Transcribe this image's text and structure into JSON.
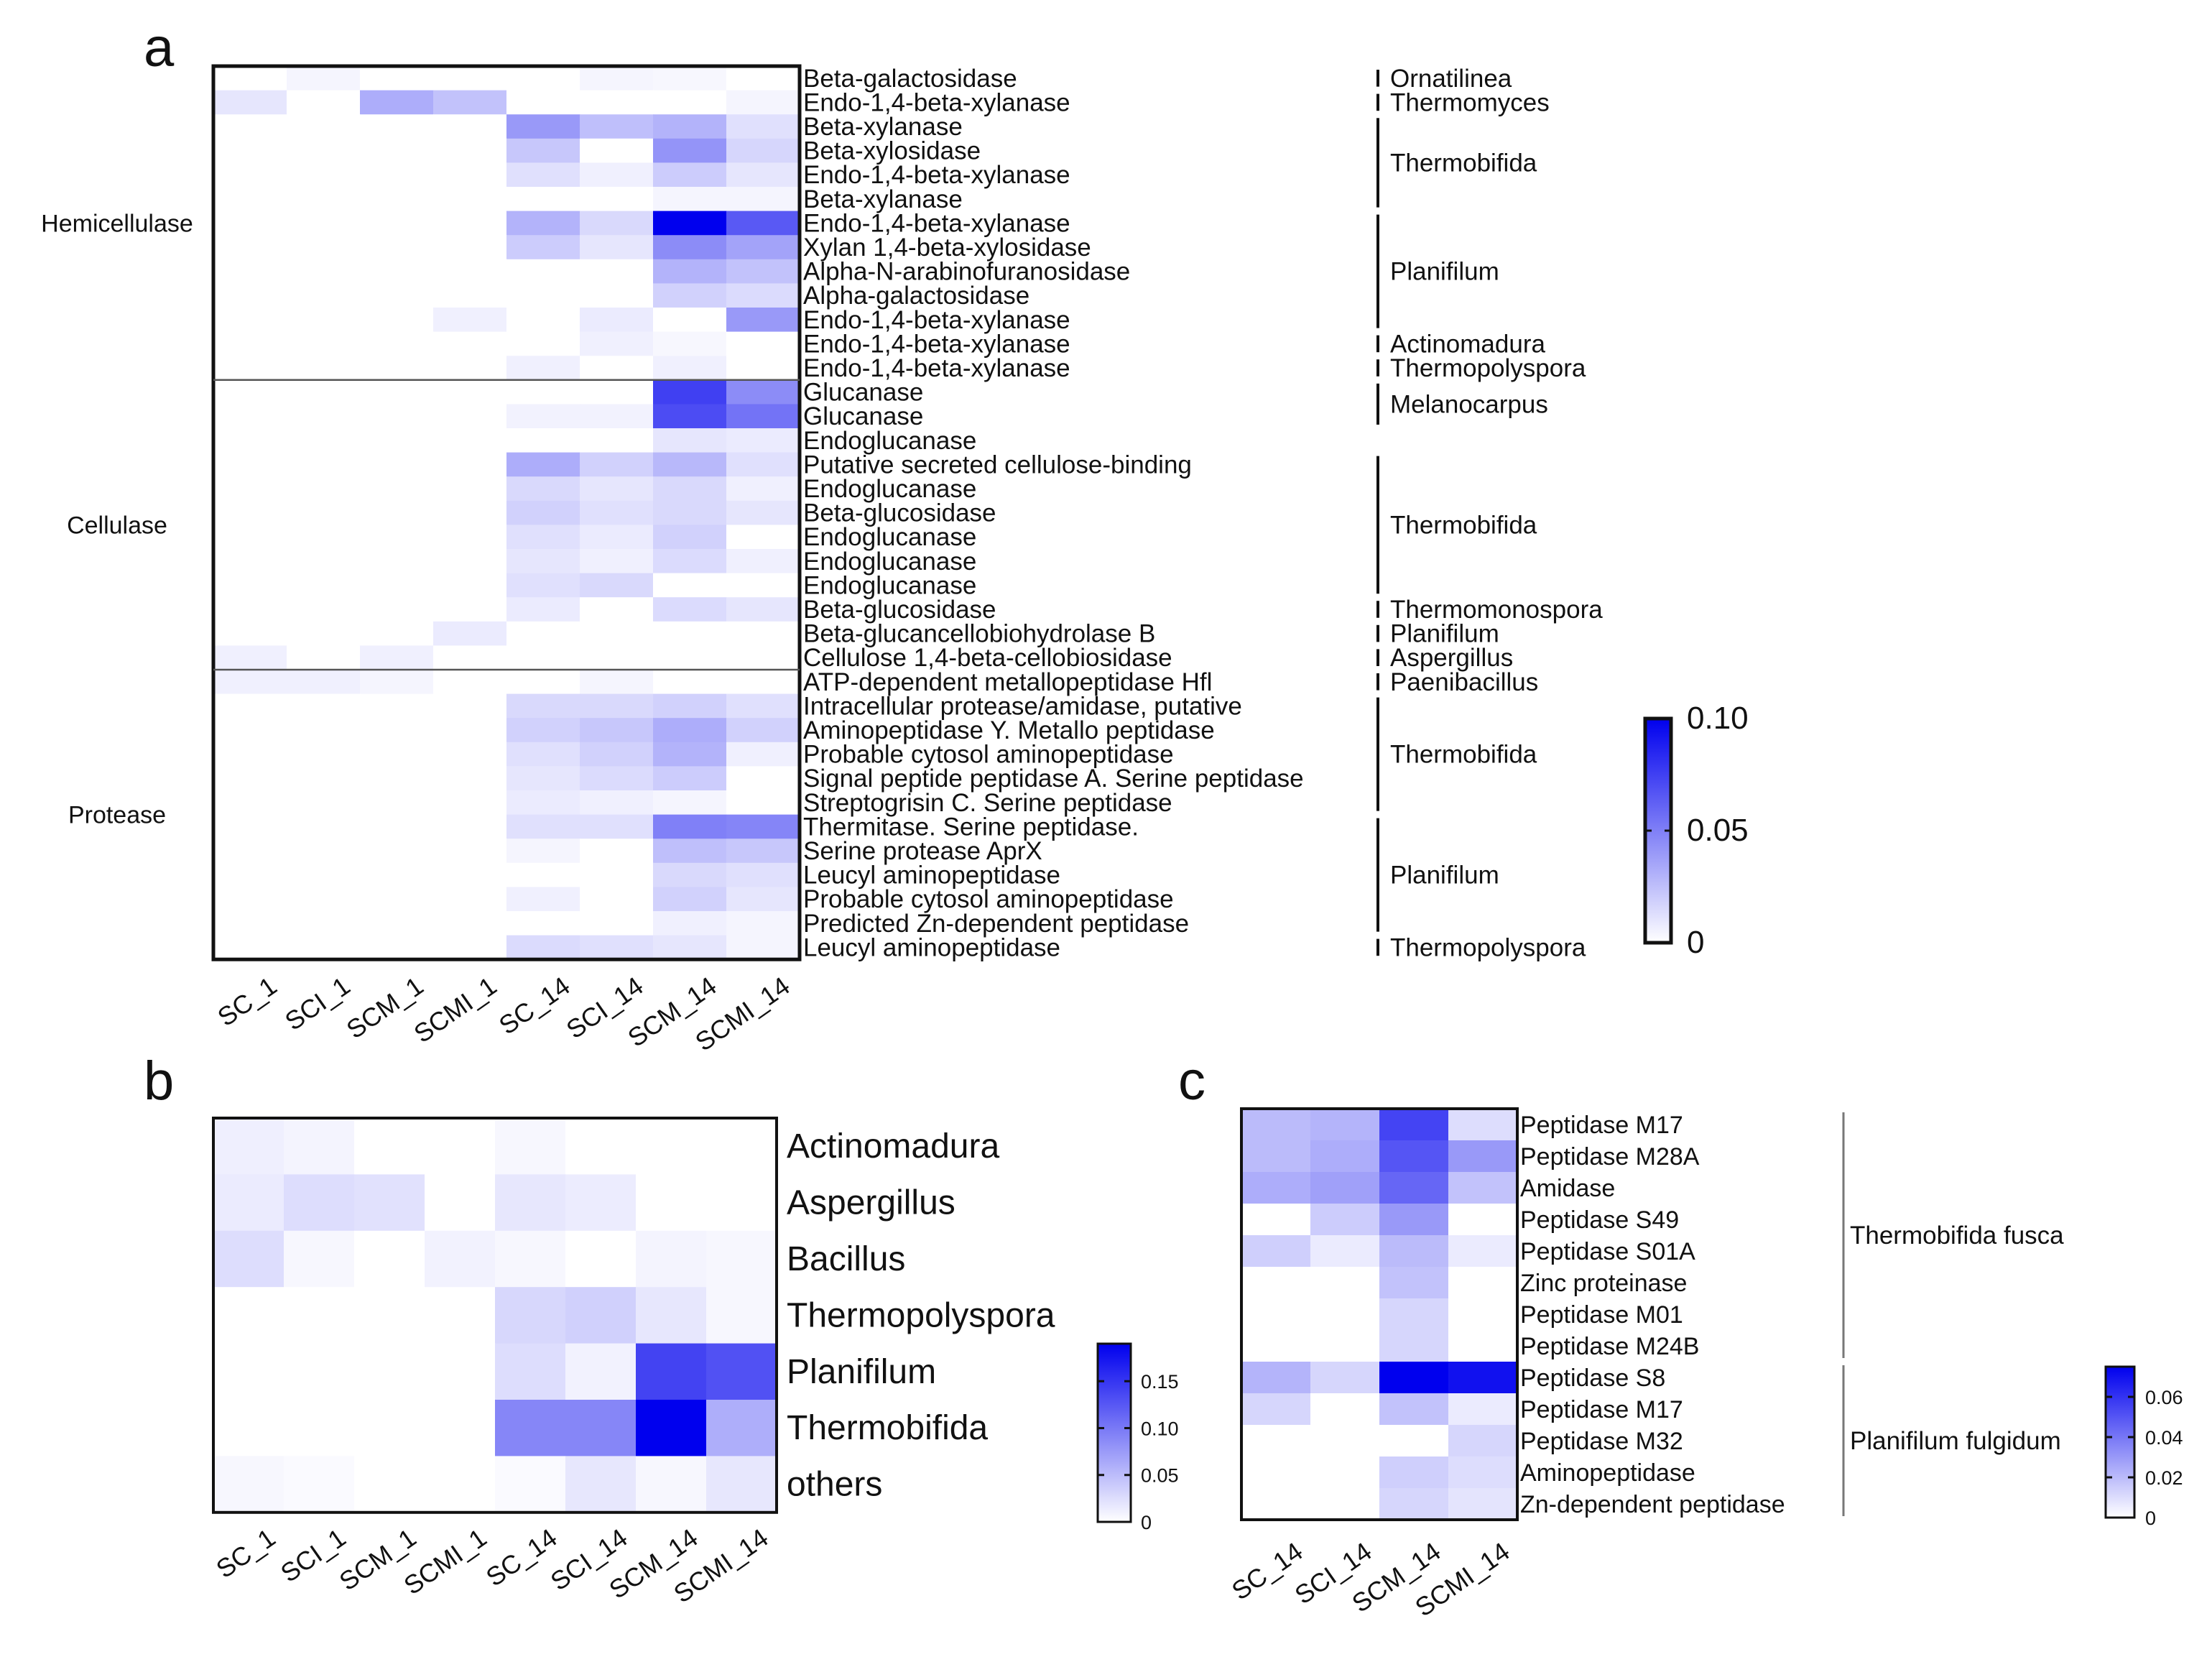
{
  "chart_data": [
    {
      "panel": "a",
      "type": "heatmap",
      "x": [
        "SC_1",
        "SCI_1",
        "SCM_1",
        "SCMI_1",
        "SC_14",
        "SCI_14",
        "SCM_14",
        "SCMI_14"
      ],
      "rows": [
        "Beta-galactosidase",
        "Endo-1,4-beta-xylanase",
        "Beta-xylanase",
        "Beta-xylosidase",
        "Endo-1,4-beta-xylanase",
        "Beta-xylanase",
        "Endo-1,4-beta-xylanase",
        "Xylan 1,4-beta-xylosidase",
        "Alpha-N-arabinofuranosidase",
        "Alpha-galactosidase",
        "Endo-1,4-beta-xylanase",
        "Endo-1,4-beta-xylanase",
        "Endo-1,4-beta-xylanase",
        "Glucanase",
        "Glucanase",
        "Endoglucanase",
        "Putative secreted cellulose-binding",
        "Endoglucanase",
        "Beta-glucosidase",
        "Endoglucanase",
        "Endoglucanase",
        "Endoglucanase",
        "Beta-glucosidase",
        "Beta-glucancellobiohydrolase B",
        "Cellulose 1,4-beta-cellobiosidase",
        "ATP-dependent metallopeptidase Hfl",
        "Intracellular protease/amidase, putative",
        "Aminopeptidase Y. Metallo peptidase",
        "Probable cytosol aminopeptidase",
        "Signal peptide peptidase A. Serine peptidase",
        "Streptogrisin C. Serine peptidase",
        "Thermitase. Serine peptidase.",
        "Serine protease AprX",
        "Leucyl aminopeptidase",
        "Probable cytosol aminopeptidase",
        "Predicted Zn-dependent peptidase",
        "Leucyl aminopeptidase"
      ],
      "values": [
        [
          0,
          0.004,
          0,
          0,
          0,
          0.004,
          0.003,
          0
        ],
        [
          0.01,
          0,
          0.032,
          0.024,
          0,
          0,
          0,
          0.004
        ],
        [
          0,
          0,
          0,
          0,
          0.04,
          0.025,
          0.03,
          0.012
        ],
        [
          0,
          0,
          0,
          0,
          0.022,
          0,
          0.042,
          0.016
        ],
        [
          0,
          0,
          0,
          0,
          0.012,
          0.006,
          0.02,
          0.01
        ],
        [
          0,
          0,
          0,
          0,
          0,
          0,
          0.004,
          0.004
        ],
        [
          0,
          0,
          0,
          0,
          0.03,
          0.015,
          0.1,
          0.065
        ],
        [
          0,
          0,
          0,
          0,
          0.02,
          0.01,
          0.045,
          0.036
        ],
        [
          0,
          0,
          0,
          0,
          0,
          0,
          0.03,
          0.024
        ],
        [
          0,
          0,
          0,
          0,
          0,
          0,
          0.018,
          0.014
        ],
        [
          0,
          0,
          0,
          0.006,
          0,
          0.008,
          0,
          0.04
        ],
        [
          0,
          0,
          0,
          0,
          0,
          0.006,
          0.003,
          0
        ],
        [
          0,
          0,
          0,
          0,
          0.006,
          0,
          0.006,
          0
        ],
        [
          0,
          0,
          0,
          0,
          0,
          0,
          0.075,
          0.045
        ],
        [
          0,
          0,
          0,
          0,
          0.005,
          0.005,
          0.07,
          0.055
        ],
        [
          0,
          0,
          0,
          0,
          0,
          0,
          0.01,
          0.008
        ],
        [
          0,
          0,
          0,
          0,
          0.032,
          0.018,
          0.028,
          0.012
        ],
        [
          0,
          0,
          0,
          0,
          0.015,
          0.01,
          0.015,
          0.006
        ],
        [
          0,
          0,
          0,
          0,
          0.018,
          0.012,
          0.015,
          0.01
        ],
        [
          0,
          0,
          0,
          0,
          0.012,
          0.008,
          0.018,
          0
        ],
        [
          0,
          0,
          0,
          0,
          0.01,
          0.006,
          0.014,
          0.006
        ],
        [
          0,
          0,
          0,
          0,
          0.012,
          0.015,
          0,
          0
        ],
        [
          0,
          0,
          0,
          0,
          0.008,
          0,
          0.014,
          0.01
        ],
        [
          0,
          0,
          0,
          0.008,
          0,
          0,
          0,
          0
        ],
        [
          0.006,
          0,
          0.006,
          0,
          0,
          0,
          0,
          0
        ],
        [
          0.006,
          0.006,
          0.004,
          0,
          0,
          0.004,
          0,
          0
        ],
        [
          0,
          0,
          0,
          0,
          0.015,
          0.015,
          0.018,
          0.012
        ],
        [
          0,
          0,
          0,
          0,
          0.018,
          0.022,
          0.032,
          0.018
        ],
        [
          0,
          0,
          0,
          0,
          0.012,
          0.018,
          0.03,
          0.006
        ],
        [
          0,
          0,
          0,
          0,
          0.01,
          0.014,
          0.02,
          0
        ],
        [
          0,
          0,
          0,
          0,
          0.008,
          0.006,
          0.004,
          0
        ],
        [
          0,
          0,
          0,
          0,
          0.012,
          0.012,
          0.05,
          0.048
        ],
        [
          0,
          0,
          0,
          0,
          0.004,
          0,
          0.025,
          0.022
        ],
        [
          0,
          0,
          0,
          0,
          0,
          0,
          0.015,
          0.012
        ],
        [
          0,
          0,
          0,
          0,
          0.006,
          0,
          0.018,
          0.01
        ],
        [
          0,
          0,
          0,
          0,
          0,
          0,
          0.006,
          0.004
        ],
        [
          0,
          0,
          0,
          0,
          0.014,
          0.012,
          0.01,
          0.004
        ]
      ],
      "groups": [
        {
          "label": "Hemicellulase",
          "rows": [
            0,
            12
          ]
        },
        {
          "label": "Cellulase",
          "rows": [
            13,
            24
          ]
        },
        {
          "label": "Protease",
          "rows": [
            25,
            36
          ]
        }
      ],
      "organisms": [
        {
          "label": "Ornatilinea",
          "rows": [
            0,
            0
          ]
        },
        {
          "label": "Thermomyces",
          "rows": [
            1,
            1
          ]
        },
        {
          "label": "Thermobifida",
          "rows": [
            2,
            5
          ]
        },
        {
          "label": "Planifilum",
          "rows": [
            6,
            10
          ]
        },
        {
          "label": "Actinomadura",
          "rows": [
            11,
            11
          ]
        },
        {
          "label": "Thermopolyspora",
          "rows": [
            12,
            12
          ]
        },
        {
          "label": "Melanocarpus",
          "rows": [
            13,
            14
          ]
        },
        {
          "label": "Thermobifida",
          "rows": [
            16,
            21
          ]
        },
        {
          "label": "Thermomonospora",
          "rows": [
            22,
            22
          ]
        },
        {
          "label": "Planifilum",
          "rows": [
            23,
            23
          ]
        },
        {
          "label": "Aspergillus",
          "rows": [
            24,
            24
          ]
        },
        {
          "label": "Paenibacillus",
          "rows": [
            25,
            25
          ]
        },
        {
          "label": "Thermobifida",
          "rows": [
            26,
            30
          ]
        },
        {
          "label": "Planifilum",
          "rows": [
            31,
            35
          ]
        },
        {
          "label": "Thermopolyspora",
          "rows": [
            36,
            36
          ]
        }
      ],
      "scale": {
        "min": 0,
        "max": 0.1,
        "ticks": [
          "0",
          "0.05",
          "0.10"
        ]
      }
    },
    {
      "panel": "b",
      "type": "heatmap",
      "x": [
        "SC_1",
        "SCI_1",
        "SCM_1",
        "SCMI_1",
        "SC_14",
        "SCI_14",
        "SCM_14",
        "SCMI_14"
      ],
      "rows": [
        "Actinomadura",
        "Aspergillus",
        "Bacillus",
        "Thermopolyspora",
        "Planifilum",
        "Thermobifida",
        "others"
      ],
      "values": [
        [
          0.012,
          0.008,
          0,
          0,
          0.006,
          0,
          0,
          0
        ],
        [
          0.015,
          0.025,
          0.022,
          0,
          0.018,
          0.014,
          0,
          0
        ],
        [
          0.025,
          0.006,
          0,
          0.01,
          0.006,
          0,
          0.008,
          0.006
        ],
        [
          0,
          0,
          0,
          0,
          0.03,
          0.035,
          0.018,
          0.006
        ],
        [
          0,
          0,
          0,
          0,
          0.025,
          0.01,
          0.14,
          0.13
        ],
        [
          0,
          0,
          0,
          0,
          0.09,
          0.09,
          0.19,
          0.06
        ],
        [
          0.006,
          0.004,
          0,
          0,
          0.004,
          0.018,
          0.006,
          0.018
        ]
      ],
      "scale": {
        "min": 0,
        "max": 0.19,
        "ticks": [
          "0",
          "0.05",
          "0.10",
          "0.15"
        ]
      }
    },
    {
      "panel": "c",
      "type": "heatmap",
      "x": [
        "SC_14",
        "SCI_14",
        "SCM_14",
        "SCMI_14"
      ],
      "rows": [
        "Peptidase M17",
        "Peptidase M28A",
        "Amidase",
        "Peptidase S49",
        "Peptidase S01A",
        "Zinc proteinase",
        "Peptidase M01",
        "Peptidase M24B",
        "Peptidase S8",
        "Peptidase M17",
        "Peptidase M32",
        "Aminopeptidase",
        "Zn-dependent peptidase"
      ],
      "values": [
        [
          0.02,
          0.022,
          0.055,
          0.01
        ],
        [
          0.02,
          0.024,
          0.05,
          0.03
        ],
        [
          0.024,
          0.028,
          0.045,
          0.018
        ],
        [
          0,
          0.015,
          0.03,
          0
        ],
        [
          0.014,
          0.006,
          0.02,
          0.006
        ],
        [
          0,
          0,
          0.018,
          0
        ],
        [
          0,
          0,
          0.012,
          0
        ],
        [
          0,
          0,
          0.012,
          0
        ],
        [
          0.022,
          0.012,
          0.075,
          0.07
        ],
        [
          0.012,
          0,
          0.018,
          0.006
        ],
        [
          0,
          0,
          0,
          0.012
        ],
        [
          0,
          0,
          0.014,
          0.01
        ],
        [
          0,
          0,
          0.012,
          0.008
        ]
      ],
      "organisms": [
        {
          "label": "Thermobifida fusca",
          "rows": [
            0,
            7
          ]
        },
        {
          "label": "Planifilum fulgidum",
          "rows": [
            8,
            12
          ]
        }
      ],
      "scale": {
        "min": 0,
        "max": 0.075,
        "ticks": [
          "0",
          "0.02",
          "0.04",
          "0.06"
        ]
      }
    }
  ],
  "panel_letters": [
    "a",
    "b",
    "c"
  ],
  "colors": {
    "low": "#ffffff",
    "high": "#0000ee",
    "frame": "#111111"
  }
}
